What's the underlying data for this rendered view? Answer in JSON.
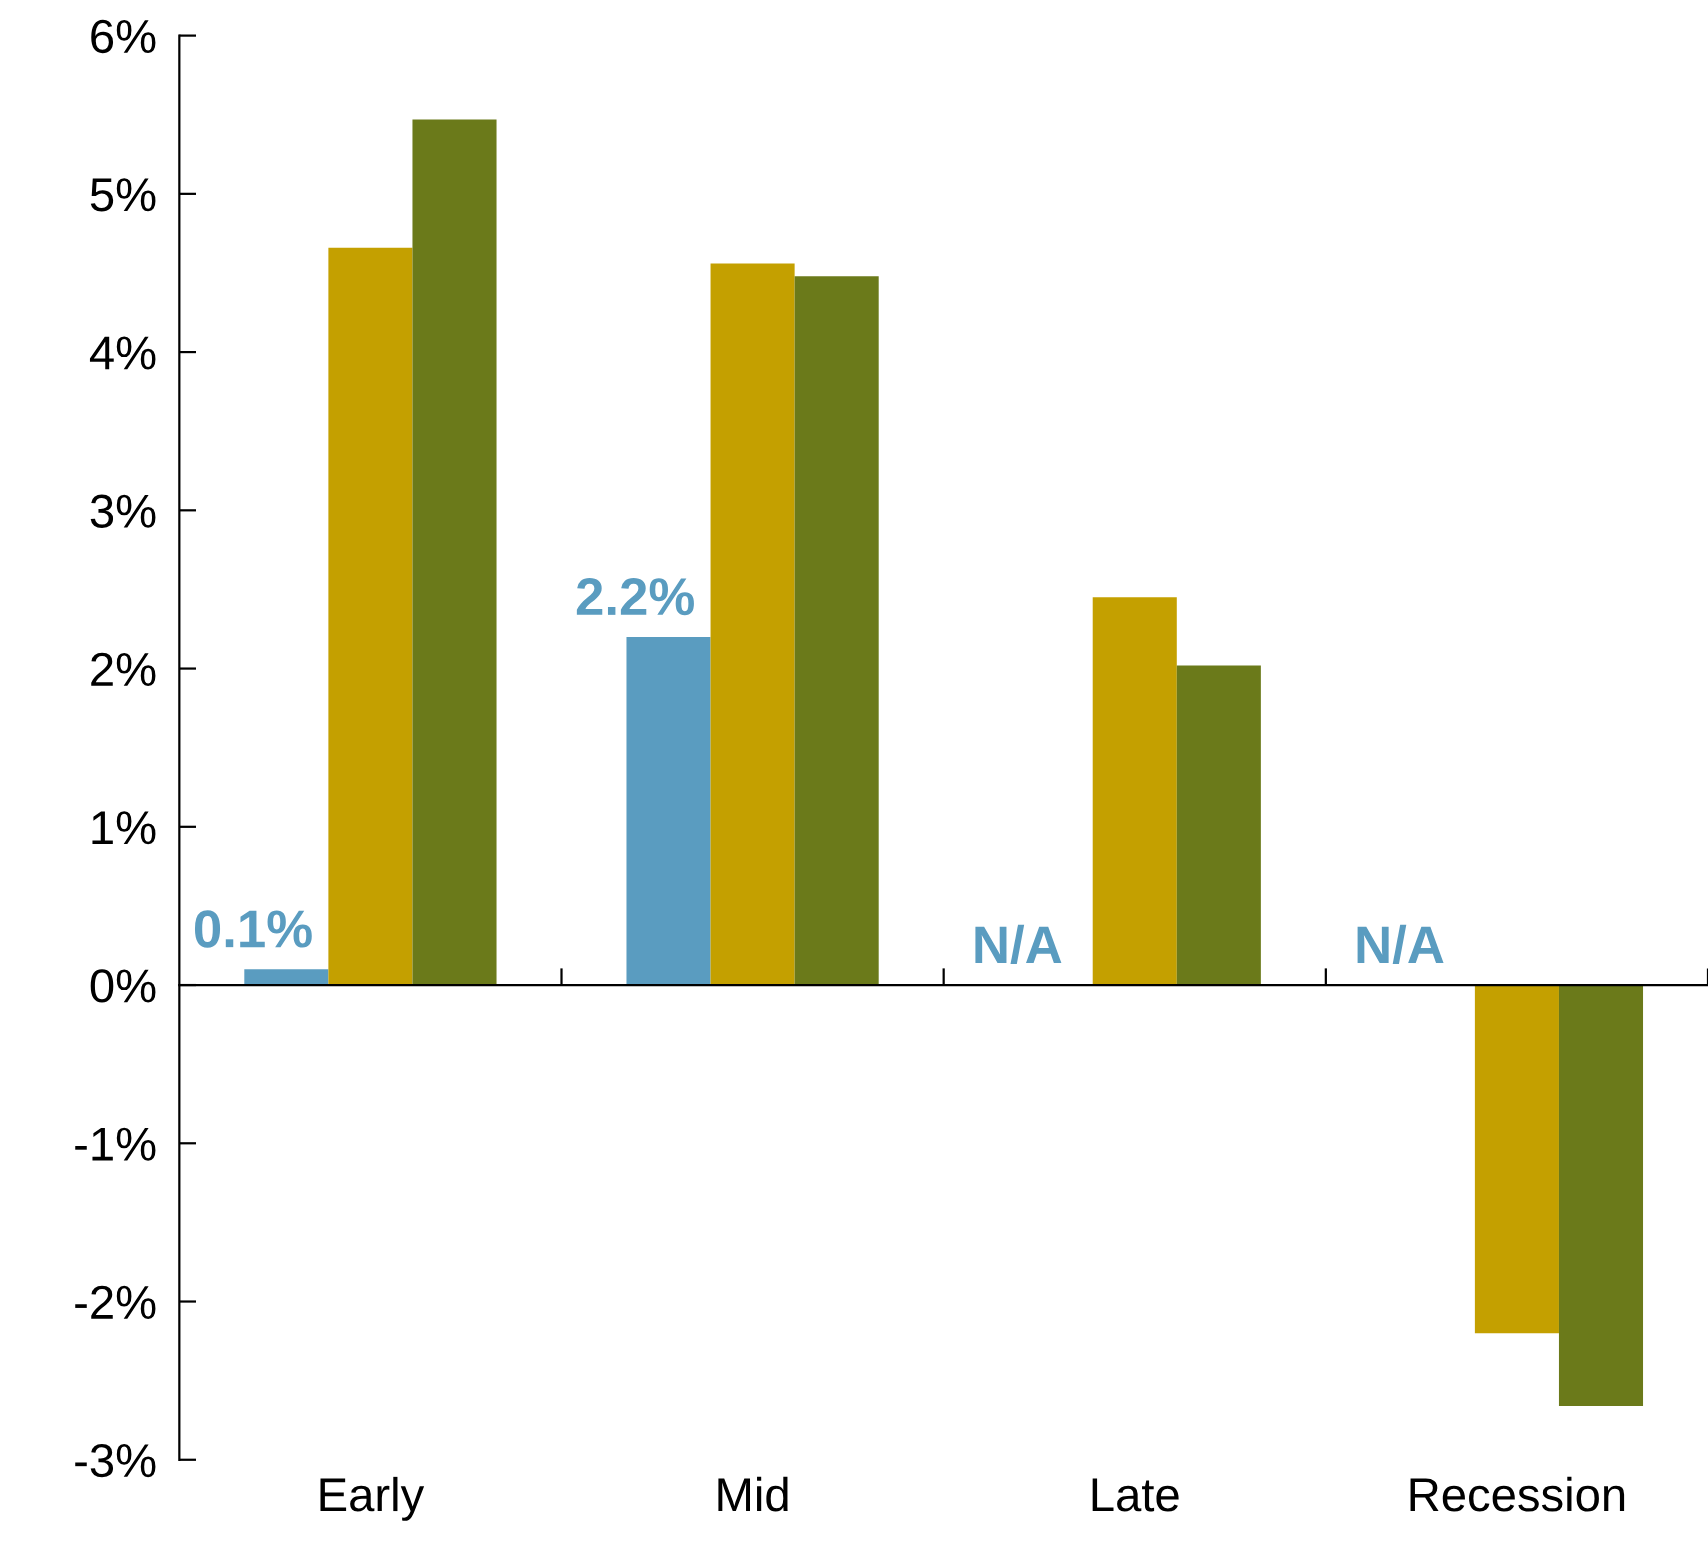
{
  "chart_data": {
    "type": "bar",
    "categories": [
      "Early",
      "Mid",
      "Late",
      "Recession"
    ],
    "series": [
      {
        "color": "#5a9cc0",
        "values": [
          0.1,
          2.2,
          null,
          null
        ],
        "value_labels": [
          "0.1%",
          "2.2%",
          "N/A",
          "N/A"
        ]
      },
      {
        "color": "#c4a000",
        "values": [
          4.66,
          4.56,
          2.45,
          -2.2
        ]
      },
      {
        "color": "#6b7a1a",
        "values": [
          5.47,
          4.48,
          2.02,
          -2.66
        ]
      }
    ],
    "ylim": [
      -3,
      6
    ],
    "yticks": [
      {
        "value": -3,
        "label": "-3%"
      },
      {
        "value": -2,
        "label": "-2%"
      },
      {
        "value": -1,
        "label": "-1%"
      },
      {
        "value": 0,
        "label": "0%"
      },
      {
        "value": 1,
        "label": "1%"
      },
      {
        "value": 2,
        "label": "2%"
      },
      {
        "value": 3,
        "label": "3%"
      },
      {
        "value": 4,
        "label": "4%"
      },
      {
        "value": 5,
        "label": "5%"
      },
      {
        "value": 6,
        "label": "6%"
      }
    ],
    "legend": false
  }
}
